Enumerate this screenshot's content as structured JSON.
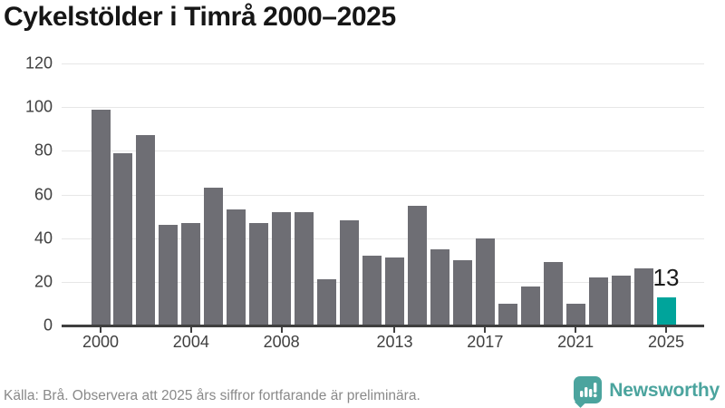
{
  "title": "Cykelstölder i Timrå 2000–2025",
  "footer": {
    "source_note": "Källa: Brå. Observera att 2025 års siffror fortfarande är preliminära.",
    "brand": "Newsworthy"
  },
  "colors": {
    "bar": "#6e6e74",
    "highlight": "#00a49b",
    "grid": "#e7e7e7",
    "axis": "#3f3f3f",
    "tick_label": "#404040",
    "title": "#161616",
    "footer_text": "#898989",
    "logo_teal": "#4ba49e"
  },
  "chart_data": {
    "type": "bar",
    "title": "Cykelstölder i Timrå 2000–2025",
    "categories": [
      2000,
      2001,
      2002,
      2003,
      2004,
      2005,
      2006,
      2007,
      2008,
      2009,
      2010,
      2011,
      2012,
      2013,
      2014,
      2015,
      2016,
      2017,
      2018,
      2019,
      2020,
      2021,
      2022,
      2023,
      2024,
      2025
    ],
    "values": [
      99,
      79,
      87,
      46,
      47,
      63,
      53,
      47,
      52,
      52,
      21,
      48,
      32,
      31,
      55,
      35,
      30,
      40,
      10,
      18,
      29,
      10,
      22,
      23,
      26,
      13
    ],
    "highlighted_category": 2025,
    "highlighted_value_label": "13",
    "x_tick_labels": [
      "2000",
      "2004",
      "2008",
      "2013",
      "2017",
      "2021",
      "2025"
    ],
    "y_ticks": [
      0,
      20,
      40,
      60,
      80,
      100,
      120
    ],
    "ylim": [
      0,
      120
    ],
    "xlabel": "",
    "ylabel": "",
    "grid": true,
    "legend": false
  }
}
